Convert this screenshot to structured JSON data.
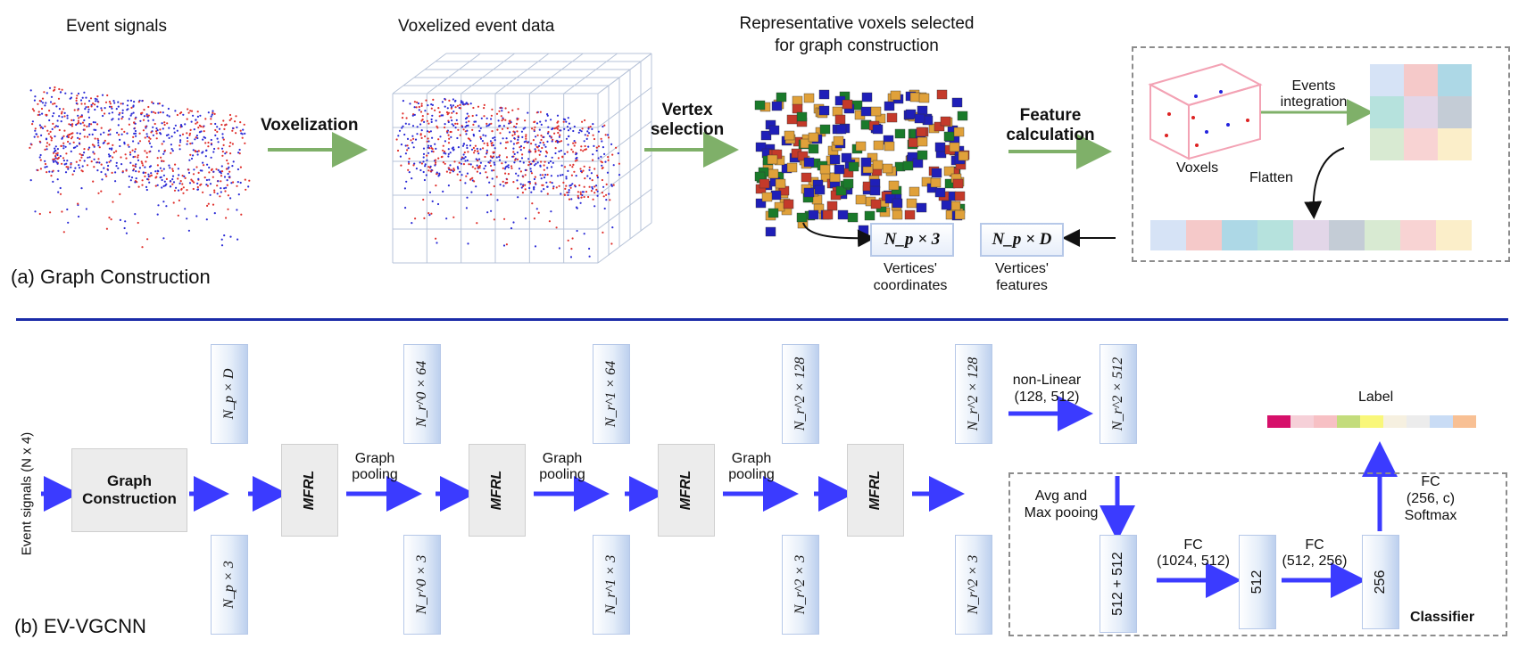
{
  "part_a": {
    "caption": "(a) Graph Construction",
    "stage_labels": {
      "event_signals": "Event signals",
      "voxelized": "Voxelized event data",
      "representative_line1": "Representative voxels selected",
      "representative_line2": "for  graph construction"
    },
    "arrow_labels": {
      "voxelization": "Voxelization",
      "vertex_line1": "Vertex",
      "vertex_line2": "selection",
      "feature_line1": "Feature",
      "feature_line2": "calculation"
    },
    "feature_box": {
      "voxels": "Voxels",
      "events_line1": "Events",
      "events_line2": "integration",
      "flatten": "Flatten",
      "grid_colors": [
        "#d6e3f6",
        "#f5c9c9",
        "#add8e6",
        "#b6e2dd",
        "#e2d6e8",
        "#c4ccd6",
        "#d8ead2",
        "#f8d3d3",
        "#fbeec9"
      ]
    },
    "outputs": {
      "coords_math": "N_p × 3",
      "coords_line1": "Vertices'",
      "coords_line2": "coordinates",
      "features_math": "N_p × D",
      "features_line1": "Vertices'",
      "features_line2": "features"
    }
  },
  "part_b": {
    "caption": "(b) EV-VGCNN",
    "input_label": "Event signals (N x 4)",
    "graph_construction_line1": "Graph",
    "graph_construction_line2": "Construction",
    "mfrl_label": "MFRL",
    "pool_line1": "Graph",
    "pool_line2": "pooling",
    "top_boxes": [
      "N_p × D",
      "N_r^0 × 64",
      "N_r^1 × 64",
      "N_r^2 × 128",
      "N_r^2 × 128",
      "N_r^2 × 512"
    ],
    "bottom_boxes": [
      "N_p × 3",
      "N_r^0 × 3",
      "N_r^1 × 3",
      "N_r^2 × 3",
      "N_r^2 × 3"
    ],
    "nonlinear_line1": "non-Linear",
    "nonlinear_line2": "(128, 512)",
    "avgmax_line1": "Avg and",
    "avgmax_line2": "Max pooing",
    "classifier": {
      "title": "Classifier",
      "box1": "512 + 512",
      "box2": "512",
      "box3": "256",
      "fc1_line1": "FC",
      "fc1_line2": "(1024, 512)",
      "fc2_line1": "FC",
      "fc2_line2": "(512, 256)",
      "fc3_line1": "FC",
      "fc3_line2": "(256, c)",
      "fc3_line3": "Softmax",
      "label": "Label",
      "label_colors": [
        "#d6106a",
        "#f6d0d8",
        "#f7c0c4",
        "#c3dc7c",
        "#f9f77a",
        "#f6f0e0",
        "#ececec",
        "#c9dcf5",
        "#f8c094"
      ]
    }
  }
}
